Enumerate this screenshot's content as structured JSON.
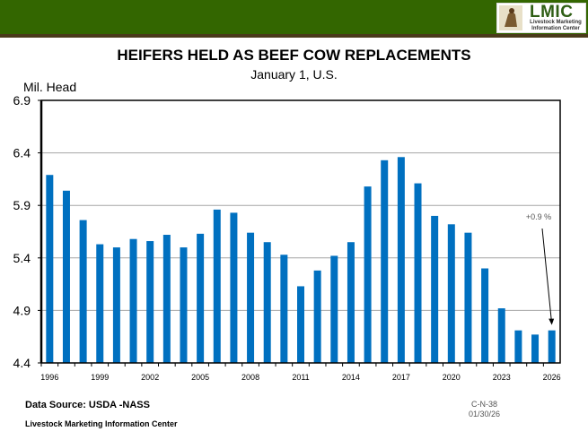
{
  "header": {
    "logo_title": "LMIC",
    "logo_subtitle": "Livestock Marketing Information Center"
  },
  "footer": {
    "source": "Data Source: USDA -NASS",
    "organization": "Livestock Marketing Information Center",
    "chart_code": "C-N-38",
    "date": "01/30/26"
  },
  "colors": {
    "bar": "#0070c0",
    "band": "#336600"
  },
  "chart_data": {
    "type": "bar",
    "title": "HEIFERS HELD AS BEEF COW REPLACEMENTS",
    "subtitle": "January 1, U.S.",
    "xlabel": "",
    "ylabel": "Mil. Head",
    "ylim": [
      4.4,
      6.9
    ],
    "yticks": [
      "4.4",
      "4.9",
      "5.4",
      "5.9",
      "6.4",
      "6.9"
    ],
    "grid": true,
    "categories": [
      1996,
      1997,
      1998,
      1999,
      2000,
      2001,
      2002,
      2003,
      2004,
      2005,
      2006,
      2007,
      2008,
      2009,
      2010,
      2011,
      2012,
      2013,
      2014,
      2015,
      2016,
      2017,
      2018,
      2019,
      2020,
      2021,
      2022,
      2023,
      2024,
      2025,
      2026
    ],
    "xtick_labels": [
      "1996",
      "1999",
      "2002",
      "2005",
      "2008",
      "2011",
      "2014",
      "2017",
      "2020",
      "2023",
      "2026"
    ],
    "values": [
      6.19,
      6.04,
      5.76,
      5.53,
      5.5,
      5.58,
      5.56,
      5.62,
      5.5,
      5.63,
      5.86,
      5.83,
      5.64,
      5.55,
      5.43,
      5.13,
      5.28,
      5.42,
      5.55,
      6.08,
      6.33,
      6.36,
      6.11,
      5.8,
      5.72,
      5.64,
      5.3,
      4.92,
      4.71,
      4.67,
      4.71
    ],
    "annotation": "+0.9 %"
  }
}
